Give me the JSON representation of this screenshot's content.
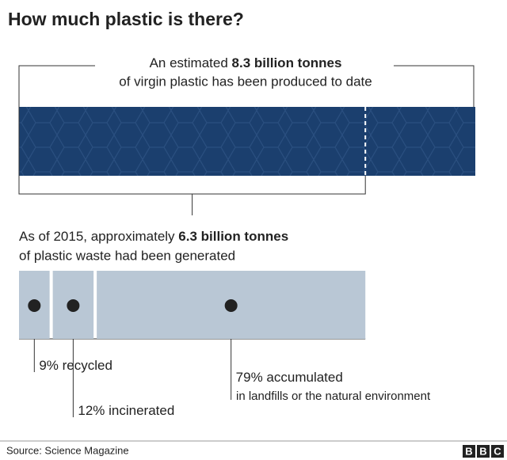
{
  "title": "How much plastic is there?",
  "produced": {
    "prefix": "An estimated",
    "value": 8.3,
    "value_label": "8.3 billion tonnes",
    "suffix": "of virgin plastic has been produced to date",
    "color": "#1b3f6e"
  },
  "waste": {
    "prefix": "As of 2015, approximately",
    "value": 6.3,
    "value_label": "6.3 billion tonnes",
    "suffix": "of plastic waste had been generated"
  },
  "fates": {
    "categories": [
      "recycled",
      "incinerated",
      "accumulated"
    ],
    "values": [
      9,
      12,
      79
    ],
    "value_labels": [
      "9%",
      "12%",
      "79%"
    ],
    "color": "#b9c7d5"
  },
  "accumulated_note": "in landfills or the natural environment",
  "source": "Source: Science Magazine",
  "logo": "BBC"
}
